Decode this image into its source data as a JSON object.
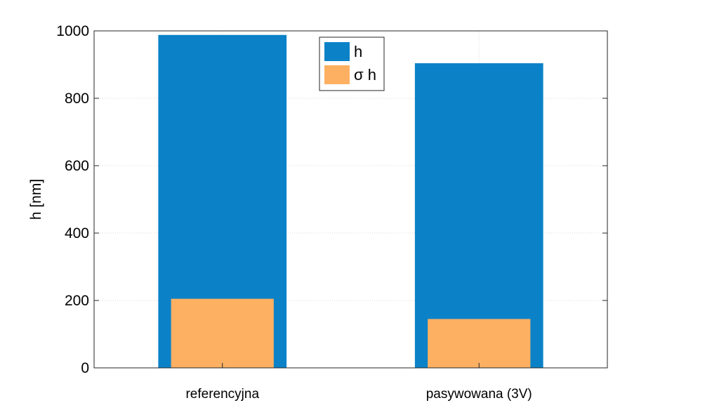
{
  "chart_data": {
    "type": "bar",
    "categories": [
      "referencyjna",
      "pasywowana (3V)"
    ],
    "series": [
      {
        "name": "h",
        "values": [
          988,
          904
        ],
        "color": "#0b82c8"
      },
      {
        "name": "σ h",
        "values": [
          205,
          145
        ],
        "color": "#fdb062"
      }
    ],
    "ylabel": "h [nm]",
    "xlabel": "",
    "ylim": [
      0,
      1000
    ],
    "yticks": [
      0,
      200,
      400,
      600,
      800,
      1000
    ],
    "grid": true,
    "legend_position": "top-center",
    "bar_style": "overlaid"
  }
}
